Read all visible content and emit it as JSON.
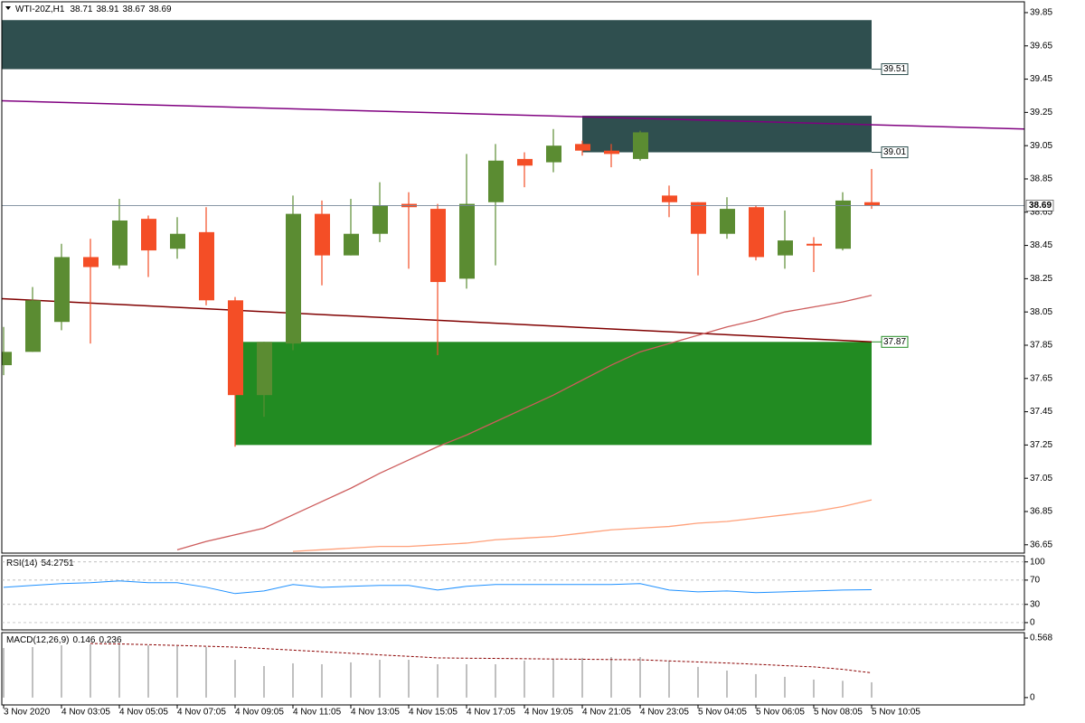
{
  "chart_data": [
    {
      "type": "candlestick",
      "title": "WTI-20Z,H1",
      "categories": [
        "3 Nov 2020",
        null,
        "4 Nov 03:05",
        null,
        "4 Nov 05:05",
        null,
        "4 Nov 07:05",
        null,
        "4 Nov 09:05",
        null,
        "4 Nov 11:05",
        null,
        "4 Nov 13:05",
        null,
        "4 Nov 15:05",
        null,
        "4 Nov 17:05",
        null,
        "4 Nov 19:05",
        null,
        "4 Nov 21:05",
        null,
        "4 Nov 23:05",
        null,
        "5 Nov 04:05",
        null,
        "5 Nov 06:05",
        null,
        "5 Nov 08:05",
        null,
        "5 Nov 10:05"
      ],
      "open": [
        37.73,
        37.81,
        37.99,
        38.38,
        38.33,
        38.61,
        38.43,
        38.53,
        38.12,
        37.55,
        37.86,
        38.64,
        38.39,
        38.52,
        38.7,
        38.67,
        38.25,
        38.71,
        38.97,
        38.95,
        39.06,
        39.02,
        38.97,
        38.75,
        38.71,
        38.52,
        38.68,
        38.39,
        38.46,
        38.43,
        38.71
      ],
      "high": [
        37.96,
        38.2,
        38.46,
        38.49,
        38.73,
        38.63,
        38.62,
        38.68,
        38.14,
        37.87,
        38.75,
        38.72,
        38.73,
        38.83,
        38.77,
        38.7,
        39.0,
        39.06,
        39.01,
        39.15,
        39.08,
        39.06,
        39.14,
        38.81,
        38.71,
        38.74,
        38.69,
        38.66,
        38.5,
        38.77,
        38.91
      ],
      "low": [
        37.67,
        37.81,
        37.94,
        37.86,
        38.31,
        38.26,
        38.37,
        38.09,
        37.24,
        37.42,
        37.82,
        38.21,
        38.39,
        38.47,
        38.31,
        37.79,
        38.19,
        38.33,
        38.8,
        38.89,
        38.99,
        38.92,
        38.96,
        38.62,
        38.27,
        38.49,
        38.36,
        38.31,
        38.29,
        38.42,
        38.67
      ],
      "close": [
        37.81,
        38.12,
        38.38,
        38.32,
        38.6,
        38.42,
        38.52,
        38.12,
        37.55,
        37.87,
        38.64,
        38.39,
        38.52,
        38.69,
        38.68,
        38.23,
        38.7,
        38.96,
        38.93,
        39.05,
        39.02,
        39.0,
        39.13,
        38.71,
        38.52,
        38.67,
        38.38,
        38.48,
        38.45,
        38.72,
        38.69
      ],
      "up_color": "#5b8c32",
      "down_color": "#f44e26",
      "ylim": [
        36.6,
        39.915
      ],
      "yticks": [
        39.85,
        39.65,
        39.45,
        39.25,
        39.05,
        38.85,
        38.65,
        38.45,
        38.25,
        38.05,
        37.85,
        37.65,
        37.45,
        37.25,
        37.05,
        36.85,
        36.65
      ],
      "zones": [
        {
          "from": 0,
          "to": 30,
          "low": 39.51,
          "high": 39.805,
          "color": "#2f4f4f",
          "label_at": "low"
        },
        {
          "from": 20,
          "to": 30,
          "low": 39.01,
          "high": 39.23,
          "color": "#2f4f4f",
          "label_at": "low"
        },
        {
          "from": 8,
          "to": 30,
          "low": 37.25,
          "high": 37.87,
          "color": "#228b22",
          "label_at": "high"
        }
      ],
      "lines": [
        {
          "x": [
            -0.06,
            35.28
          ],
          "values": [
            39.32,
            39.15
          ],
          "color": "#800080"
        },
        {
          "x": [
            -0.06,
            30
          ],
          "values": [
            38.13,
            37.87
          ],
          "color": "#800000"
        }
      ],
      "series": [
        {
          "color": "#cd5c5c",
          "values": [
            null,
            null,
            null,
            null,
            null,
            null,
            36.62,
            36.67,
            36.71,
            36.75,
            36.83,
            36.91,
            36.99,
            37.08,
            37.16,
            37.24,
            37.31,
            37.39,
            37.47,
            37.55,
            37.64,
            37.73,
            37.81,
            37.86,
            37.91,
            37.96,
            38.0,
            38.05,
            38.08,
            38.11,
            38.15
          ]
        },
        {
          "color": "#ffa07a",
          "values": [
            null,
            null,
            null,
            null,
            null,
            null,
            null,
            null,
            null,
            null,
            36.61,
            36.62,
            36.63,
            36.64,
            36.64,
            36.65,
            36.66,
            36.68,
            36.69,
            36.7,
            36.72,
            36.74,
            36.75,
            36.76,
            36.78,
            36.79,
            36.81,
            36.83,
            36.85,
            36.88,
            36.92
          ]
        }
      ],
      "price_line_color": "#778899"
    },
    {
      "type": "line",
      "title": "RSI(14)",
      "values": [
        58.2,
        61.2,
        64.2,
        65.7,
        68.7,
        65.7,
        65.7,
        58.2,
        47.8,
        52.2,
        62.7,
        58.2,
        59.7,
        61.2,
        61.2,
        53.7,
        59.7,
        62.7,
        62.7,
        62.7,
        62.7,
        62.7,
        64.2,
        53.7,
        50.7,
        52.2,
        49.3,
        50.7,
        52.2,
        53.7,
        54.2751
      ],
      "color": "#1e90ff",
      "ylim": [
        -12,
        110
      ],
      "yticks": [
        100,
        70,
        30,
        0
      ],
      "grid": true
    },
    {
      "type": "bar",
      "title": "MACD(12,26,9)",
      "values": [
        0.473,
        0.482,
        0.499,
        0.508,
        0.508,
        0.499,
        0.491,
        0.482,
        0.361,
        0.301,
        0.327,
        0.318,
        0.336,
        0.361,
        0.361,
        0.318,
        0.318,
        0.318,
        0.353,
        0.37,
        0.379,
        0.387,
        0.387,
        0.353,
        0.293,
        0.258,
        0.224,
        0.198,
        0.172,
        0.16,
        0.146
      ],
      "color": "#c0c0c0",
      "signal": {
        "color": "#8b0000",
        "values": [
          null,
          null,
          null,
          0.516,
          0.512,
          0.505,
          0.498,
          0.49,
          0.482,
          0.468,
          0.453,
          0.438,
          0.423,
          0.408,
          0.394,
          0.379,
          0.376,
          0.374,
          0.371,
          0.368,
          0.366,
          0.363,
          0.361,
          0.35,
          0.34,
          0.33,
          0.318,
          0.305,
          0.293,
          0.27,
          0.236
        ]
      },
      "ylim": [
        -0.07,
        0.62
      ],
      "yticks": [
        0.568,
        0
      ]
    }
  ]
}
